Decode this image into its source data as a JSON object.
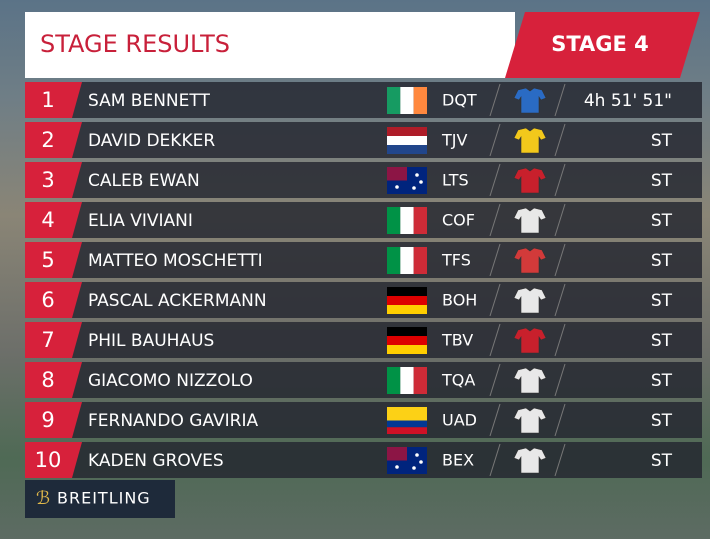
{
  "header": {
    "title": "STAGE RESULTS",
    "stage": "STAGE 4"
  },
  "results": [
    {
      "rank": "1",
      "name": "SAM BENNETT",
      "team": "DQT",
      "time": "4h 51' 51\""
    },
    {
      "rank": "2",
      "name": "DAVID DEKKER",
      "team": "TJV",
      "time": "ST"
    },
    {
      "rank": "3",
      "name": "CALEB EWAN",
      "team": "LTS",
      "time": "ST"
    },
    {
      "rank": "4",
      "name": "ELIA VIVIANI",
      "team": "COF",
      "time": "ST"
    },
    {
      "rank": "5",
      "name": "MATTEO MOSCHETTI",
      "team": "TFS",
      "time": "ST"
    },
    {
      "rank": "6",
      "name": "PASCAL ACKERMANN",
      "team": "BOH",
      "time": "ST"
    },
    {
      "rank": "7",
      "name": "PHIL BAUHAUS",
      "team": "TBV",
      "time": "ST"
    },
    {
      "rank": "8",
      "name": "GIACOMO NIZZOLO",
      "team": "TQA",
      "time": "ST"
    },
    {
      "rank": "9",
      "name": "FERNANDO GAVIRIA",
      "team": "UAD",
      "time": "ST"
    },
    {
      "rank": "10",
      "name": "KADEN GROVES",
      "team": "BEX",
      "time": "ST"
    }
  ],
  "sponsor": "BREITLING"
}
